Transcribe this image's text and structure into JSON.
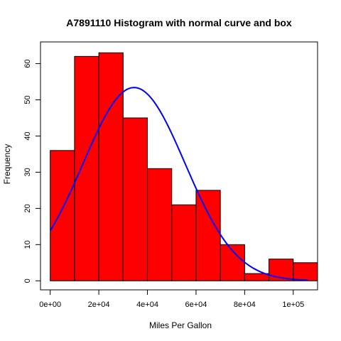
{
  "chart_data": {
    "type": "bar",
    "title": "A7891110 Histogram with normal curve and box",
    "xlabel": "Miles Per Gallon",
    "ylabel": "Frequency",
    "xlim": [
      -4000,
      110000
    ],
    "ylim": [
      -2.5,
      66
    ],
    "bins": [
      {
        "start": 0,
        "end": 10000,
        "count": 36
      },
      {
        "start": 10000,
        "end": 20000,
        "count": 62
      },
      {
        "start": 20000,
        "end": 30000,
        "count": 63
      },
      {
        "start": 30000,
        "end": 40000,
        "count": 45
      },
      {
        "start": 40000,
        "end": 50000,
        "count": 31
      },
      {
        "start": 50000,
        "end": 60000,
        "count": 21
      },
      {
        "start": 60000,
        "end": 70000,
        "count": 25
      },
      {
        "start": 70000,
        "end": 80000,
        "count": 10
      },
      {
        "start": 80000,
        "end": 90000,
        "count": 2
      },
      {
        "start": 90000,
        "end": 100000,
        "count": 6
      },
      {
        "start": 100000,
        "end": 110000,
        "count": 5
      }
    ],
    "x_ticks": [
      {
        "value": 0,
        "label": "0e+00"
      },
      {
        "value": 20000,
        "label": "2e+04"
      },
      {
        "value": 40000,
        "label": "4e+04"
      },
      {
        "value": 60000,
        "label": "6e+04"
      },
      {
        "value": 80000,
        "label": "8e+04"
      },
      {
        "value": 100000,
        "label": "1e+05"
      }
    ],
    "y_ticks": [
      {
        "value": 0,
        "label": "0"
      },
      {
        "value": 10,
        "label": "10"
      },
      {
        "value": 20,
        "label": "20"
      },
      {
        "value": 30,
        "label": "30"
      },
      {
        "value": 40,
        "label": "40"
      },
      {
        "value": 50,
        "label": "50"
      },
      {
        "value": 60,
        "label": "60"
      }
    ],
    "normal_curve": {
      "mean": 34500,
      "sd": 21000,
      "peak_frequency": 53.4,
      "x_from": 0,
      "x_to": 106000
    },
    "colors": {
      "bar_fill": "#ff0000",
      "bar_stroke": "#000000",
      "curve": "#0000ff",
      "axis": "#000000"
    },
    "grid": false,
    "legend": "none",
    "box": true
  }
}
